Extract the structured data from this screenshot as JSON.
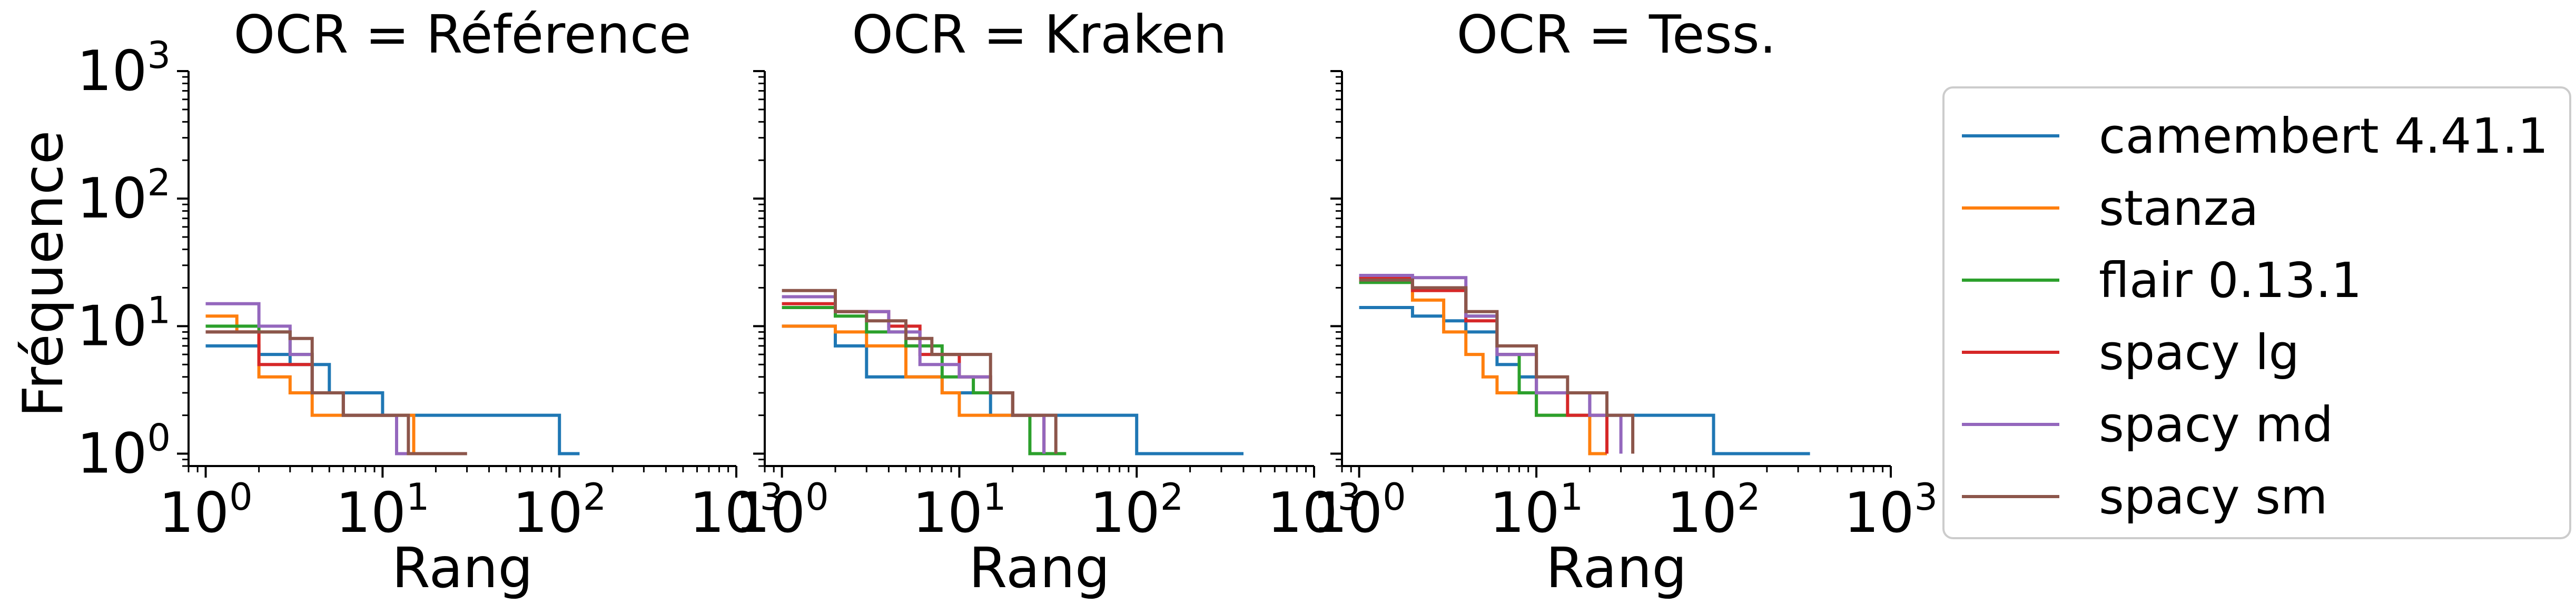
{
  "chart_data": [
    {
      "type": "line",
      "title": "OCR = Référence",
      "xlabel": "Rang",
      "ylabel": "Fréquence",
      "xscale": "log",
      "yscale": "log",
      "xlim": [
        0.8,
        1000
      ],
      "ylim": [
        0.8,
        1000
      ],
      "xticks": [
        "10^0",
        "10^1",
        "10^2",
        "10^3"
      ],
      "yticks": [
        "10^0",
        "10^1",
        "10^2",
        "10^3"
      ],
      "series": [
        {
          "name": "camembert 4.41.1",
          "x": [
            1,
            1.5,
            2,
            3,
            5,
            8,
            10,
            30,
            100,
            130
          ],
          "y": [
            7,
            7,
            6,
            5,
            3,
            3,
            2,
            2,
            1,
            1
          ]
        },
        {
          "name": "stanza",
          "x": [
            1,
            1.5,
            2,
            3,
            4,
            5,
            7,
            10,
            15,
            30
          ],
          "y": [
            12,
            9,
            4,
            3,
            2,
            2,
            2,
            2,
            1,
            1
          ]
        },
        {
          "name": "flair 0.13.1",
          "x": [
            1,
            1.5,
            2,
            3,
            4,
            6,
            8,
            10,
            12,
            30
          ],
          "y": [
            10,
            10,
            9,
            6,
            3,
            2,
            2,
            2,
            1,
            1
          ]
        },
        {
          "name": "spacy lg",
          "x": [
            1,
            1.5,
            2,
            3,
            4,
            6,
            8,
            12,
            30
          ],
          "y": [
            9,
            9,
            5,
            5,
            3,
            2,
            2,
            1,
            1
          ]
        },
        {
          "name": "spacy md",
          "x": [
            1,
            1.5,
            2,
            3,
            4,
            6,
            8,
            12,
            30
          ],
          "y": [
            15,
            15,
            10,
            6,
            3,
            2,
            2,
            1,
            1
          ]
        },
        {
          "name": "spacy sm",
          "x": [
            1,
            1.5,
            2,
            3,
            4,
            6,
            8,
            14,
            30
          ],
          "y": [
            9,
            9,
            9,
            8,
            3,
            2,
            2,
            1,
            1
          ]
        }
      ]
    },
    {
      "type": "line",
      "title": "OCR = Kraken",
      "xlabel": "Rang",
      "xscale": "log",
      "yscale": "log",
      "xlim": [
        0.8,
        1000
      ],
      "ylim": [
        0.8,
        1000
      ],
      "xticks": [
        "10^0",
        "10^1",
        "10^2",
        "10^3"
      ],
      "series": [
        {
          "name": "camembert 4.41.1",
          "x": [
            1,
            2,
            3,
            5,
            8,
            15,
            30,
            50,
            100,
            300,
            400
          ],
          "y": [
            10,
            7,
            4,
            4,
            3,
            2,
            2,
            2,
            1,
            1,
            1
          ]
        },
        {
          "name": "stanza",
          "x": [
            1,
            2,
            3,
            5,
            8,
            10,
            20,
            30,
            40
          ],
          "y": [
            10,
            9,
            7,
            4,
            3,
            2,
            2,
            1,
            1
          ]
        },
        {
          "name": "flair 0.13.1",
          "x": [
            1,
            2,
            3,
            5,
            8,
            12,
            20,
            25,
            40
          ],
          "y": [
            14,
            12,
            9,
            7,
            4,
            3,
            2,
            1,
            1
          ]
        },
        {
          "name": "spacy lg",
          "x": [
            1,
            2,
            4,
            6,
            10,
            15,
            20,
            30
          ],
          "y": [
            15,
            13,
            10,
            6,
            4,
            3,
            2,
            1
          ]
        },
        {
          "name": "spacy md",
          "x": [
            1,
            2,
            4,
            6,
            10,
            15,
            20,
            30
          ],
          "y": [
            17,
            13,
            9,
            5,
            4,
            3,
            2,
            1
          ]
        },
        {
          "name": "spacy sm",
          "x": [
            1,
            1.5,
            2,
            3,
            5,
            7,
            10,
            15,
            20,
            35
          ],
          "y": [
            19,
            19,
            13,
            11,
            8,
            6,
            6,
            3,
            2,
            1
          ]
        }
      ]
    },
    {
      "type": "line",
      "title": "OCR = Tess.",
      "xlabel": "Rang",
      "xscale": "log",
      "yscale": "log",
      "xlim": [
        0.8,
        1000
      ],
      "ylim": [
        0.8,
        1000
      ],
      "xticks": [
        "10^0",
        "10^1",
        "10^2",
        "10^3"
      ],
      "series": [
        {
          "name": "camembert 4.41.1",
          "x": [
            1,
            2,
            3,
            4,
            6,
            8,
            10,
            20,
            30,
            50,
            100,
            300,
            350
          ],
          "y": [
            14,
            12,
            11,
            9,
            5,
            4,
            3,
            2,
            2,
            2,
            1,
            1,
            1
          ]
        },
        {
          "name": "stanza",
          "x": [
            1,
            2,
            3,
            4,
            5,
            6,
            8,
            10,
            15,
            20,
            25
          ],
          "y": [
            24,
            16,
            9,
            6,
            4,
            3,
            3,
            2,
            2,
            1,
            1
          ]
        },
        {
          "name": "flair 0.13.1",
          "x": [
            1,
            2,
            4,
            6,
            8,
            10,
            15,
            20,
            25
          ],
          "y": [
            22,
            20,
            12,
            6,
            3,
            2,
            2,
            2,
            1
          ]
        },
        {
          "name": "spacy lg",
          "x": [
            1,
            2,
            4,
            6,
            10,
            15,
            20,
            25
          ],
          "y": [
            24,
            19,
            11,
            6,
            3,
            2,
            2,
            1
          ]
        },
        {
          "name": "spacy md",
          "x": [
            1,
            2,
            4,
            6,
            10,
            15,
            20,
            30
          ],
          "y": [
            25,
            24,
            12,
            6,
            3,
            3,
            2,
            1
          ]
        },
        {
          "name": "spacy sm",
          "x": [
            1,
            2,
            4,
            6,
            10,
            15,
            25,
            35
          ],
          "y": [
            23,
            20,
            13,
            7,
            4,
            3,
            2,
            1
          ]
        }
      ]
    }
  ],
  "legend": {
    "placement": "right",
    "entries": [
      "camembert 4.41.1",
      "stanza",
      "flair 0.13.1",
      "spacy lg",
      "spacy md",
      "spacy sm"
    ]
  },
  "colors": {
    "camembert 4.41.1": "#1f77b4",
    "stanza": "#ff7f0e",
    "flair 0.13.1": "#2ca02c",
    "spacy lg": "#d62728",
    "spacy md": "#9467bd",
    "spacy sm": "#8c564b"
  }
}
